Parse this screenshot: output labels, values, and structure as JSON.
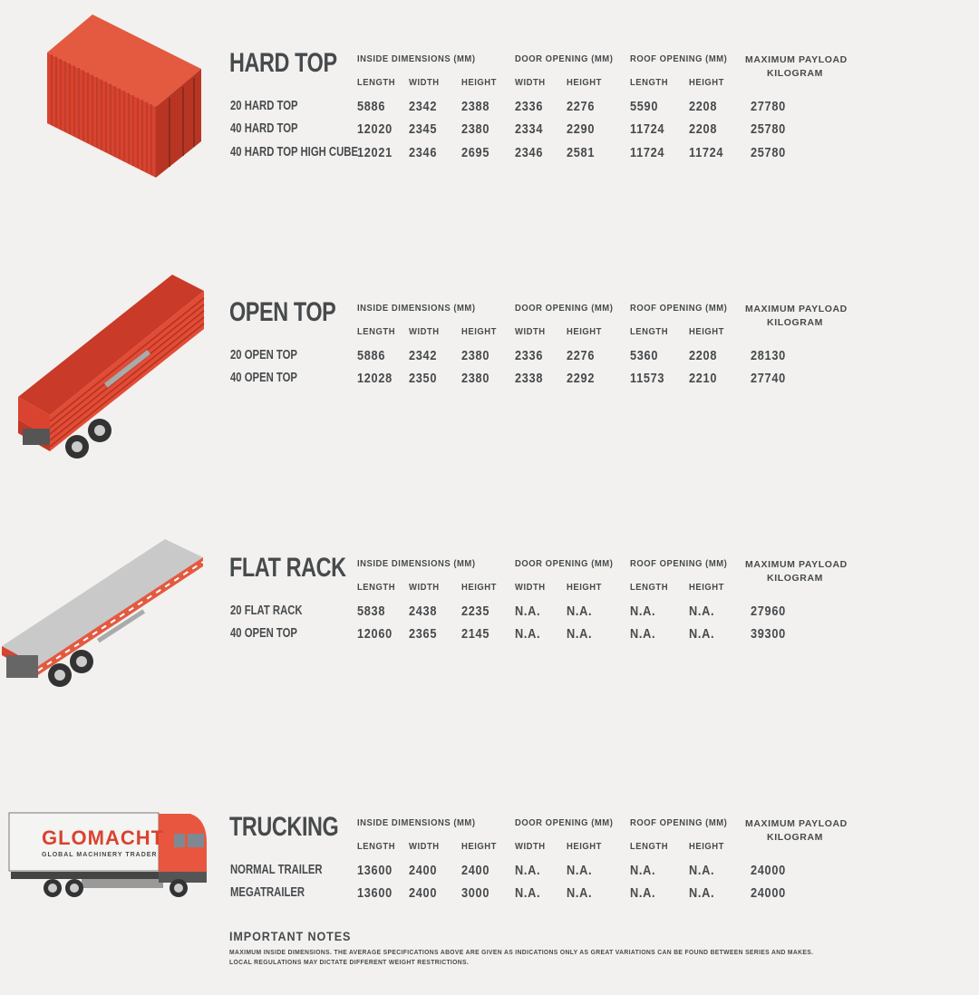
{
  "colors": {
    "background": "#f2f1ef",
    "text": "#474a4c",
    "container_red": "#d9432f",
    "truck_cab": "#e8563f",
    "flat_rack_grey": "#c9c9c9"
  },
  "column_headers": {
    "inside_dimensions": "INSIDE DIMENSIONS (MM)",
    "door_opening": "DOOR OPENING (MM)",
    "roof_opening": "ROOF OPENING (MM)",
    "payload_line1": "MAXIMUM PAYLOAD",
    "payload_line2": "KILOGRAM",
    "sub": [
      "LENGTH",
      "WIDTH",
      "HEIGHT",
      "WIDTH",
      "HEIGHT",
      "LENGTH",
      "HEIGHT"
    ]
  },
  "sections": [
    {
      "title": "HARD TOP",
      "illustration": "red-shipping-container-icon",
      "rows": [
        {
          "label": "20 HARD TOP",
          "values": [
            "5886",
            "2342",
            "2388",
            "2336",
            "2276",
            "5590",
            "2208",
            "27780"
          ]
        },
        {
          "label": "40 HARD TOP",
          "values": [
            "12020",
            "2345",
            "2380",
            "2334",
            "2290",
            "11724",
            "2208",
            "25780"
          ]
        },
        {
          "label": "40 HARD TOP HIGH CUBE",
          "values": [
            "12021",
            "2346",
            "2695",
            "2346",
            "2581",
            "11724",
            "11724",
            "25780"
          ]
        }
      ]
    },
    {
      "title": "OPEN TOP",
      "illustration": "open-top-trailer-icon",
      "rows": [
        {
          "label": "20 OPEN TOP",
          "values": [
            "5886",
            "2342",
            "2380",
            "2336",
            "2276",
            "5360",
            "2208",
            "28130"
          ]
        },
        {
          "label": "40 OPEN TOP",
          "values": [
            "12028",
            "2350",
            "2380",
            "2338",
            "2292",
            "11573",
            "2210",
            "27740"
          ]
        }
      ]
    },
    {
      "title": "FLAT RACK",
      "illustration": "flat-rack-trailer-icon",
      "rows": [
        {
          "label": "20 FLAT RACK",
          "values": [
            "5838",
            "2438",
            "2235",
            "N.A.",
            "N.A.",
            "N.A.",
            "N.A.",
            "27960"
          ]
        },
        {
          "label": "40 OPEN TOP",
          "values": [
            "12060",
            "2365",
            "2145",
            "N.A.",
            "N.A.",
            "N.A.",
            "N.A.",
            "39300"
          ]
        }
      ]
    },
    {
      "title": "TRUCKING",
      "illustration": "truck-icon",
      "rows": [
        {
          "label": "NORMAL TRAILER",
          "values": [
            "13600",
            "2400",
            "2400",
            "N.A.",
            "N.A.",
            "N.A.",
            "N.A.",
            "24000"
          ]
        },
        {
          "label": "MEGATRAILER",
          "values": [
            "13600",
            "2400",
            "3000",
            "N.A.",
            "N.A.",
            "N.A.",
            "N.A.",
            "24000"
          ]
        }
      ]
    }
  ],
  "logo": {
    "name": "GLOMACHT",
    "tagline": "GLOBAL MACHINERY TRADER"
  },
  "notes": {
    "title": "IMPORTANT NOTES",
    "line1": "MAXIMUM INSIDE DIMENSIONS. THE AVERAGE SPECIFICATIONS ABOVE ARE GIVEN AS INDICATIONS ONLY AS GREAT VARIATIONS CAN BE FOUND BETWEEN SERIES AND MAKES.",
    "line2": "LOCAL REGULATIONS MAY DICTATE DIFFERENT WEIGHT RESTRICTIONS."
  }
}
